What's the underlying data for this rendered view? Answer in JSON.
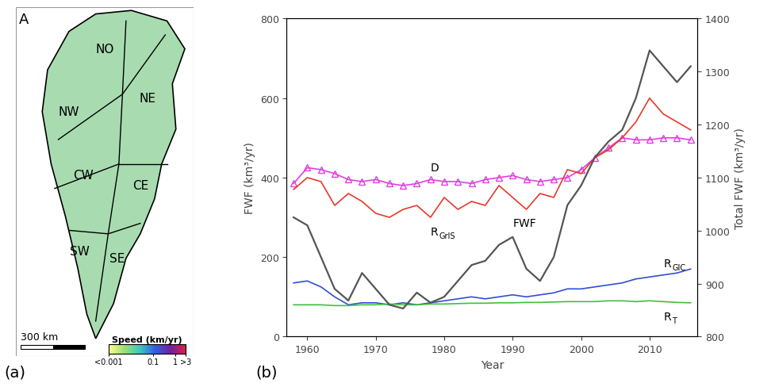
{
  "chart_data": [
    {
      "type": "map",
      "panel": "(a)",
      "title": "A",
      "regions": [
        "NO",
        "NE",
        "NW",
        "CW",
        "CE",
        "SW",
        "SE"
      ],
      "scale_bar": "300 km",
      "colorbar": {
        "label": "Speed (km/yr)",
        "log": true,
        "lim": [
          0.001,
          3
        ],
        "ticks": [
          {
            "value": 0.001,
            "label": "<0.001"
          },
          0.1,
          1,
          {
            "value": 3,
            "label": ">3"
          }
        ]
      }
    },
    {
      "type": "line",
      "panel": "(b)",
      "x_label": "Year",
      "y_label": "FWF (km³/yr)",
      "y2_label": "Total FWF (km³/yr)",
      "x": [
        1958,
        1960,
        1962,
        1964,
        1966,
        1968,
        1970,
        1972,
        1974,
        1976,
        1978,
        1980,
        1982,
        1984,
        1986,
        1988,
        1990,
        1992,
        1994,
        1996,
        1998,
        2000,
        2002,
        2004,
        2006,
        2008,
        2010,
        2012,
        2014,
        2016
      ],
      "xlim": [
        1957,
        2017
      ],
      "xticks": [
        1960,
        1970,
        1980,
        1990,
        2000,
        2010
      ],
      "ylim": [
        0,
        800
      ],
      "yticks": [
        0,
        200,
        400,
        600,
        800
      ],
      "y2lim": [
        800,
        1400
      ],
      "y2ticks": [
        800,
        900,
        1000,
        1100,
        1200,
        1300,
        1400
      ],
      "series": [
        {
          "name": "D",
          "color": "#e040e0",
          "marker": "triangle",
          "values": [
            385,
            425,
            420,
            410,
            395,
            390,
            395,
            385,
            380,
            385,
            395,
            390,
            390,
            385,
            395,
            400,
            405,
            395,
            390,
            395,
            400,
            420,
            450,
            475,
            500,
            495,
            495,
            500,
            500,
            495
          ]
        },
        {
          "name": "RGrIS",
          "color": "#e8392a",
          "values": [
            370,
            400,
            390,
            330,
            360,
            340,
            310,
            300,
            320,
            330,
            300,
            350,
            320,
            340,
            330,
            380,
            350,
            320,
            360,
            350,
            420,
            410,
            450,
            470,
            500,
            540,
            600,
            560,
            540,
            520
          ]
        },
        {
          "name": "FWF",
          "color": "#555555",
          "axis": "y2",
          "values": [
            1025,
            1010,
            950,
            890,
            868,
            920,
            890,
            860,
            853,
            883,
            864,
            875,
            905,
            935,
            943,
            973,
            988,
            928,
            905,
            950,
            1048,
            1085,
            1138,
            1168,
            1190,
            1250,
            1340,
            1310,
            1280,
            1310
          ]
        },
        {
          "name": "RGIC",
          "color": "#3050d0",
          "values": [
            135,
            140,
            125,
            100,
            80,
            85,
            85,
            80,
            85,
            80,
            85,
            90,
            95,
            100,
            95,
            100,
            105,
            100,
            105,
            110,
            120,
            120,
            125,
            130,
            135,
            145,
            150,
            155,
            160,
            170
          ]
        },
        {
          "name": "RT",
          "color": "#40c040",
          "values": [
            80,
            80,
            80,
            78,
            78,
            80,
            80,
            82,
            80,
            80,
            82,
            82,
            83,
            84,
            84,
            85,
            85,
            86,
            86,
            87,
            88,
            88,
            88,
            90,
            90,
            88,
            90,
            88,
            86,
            85
          ]
        }
      ]
    }
  ]
}
